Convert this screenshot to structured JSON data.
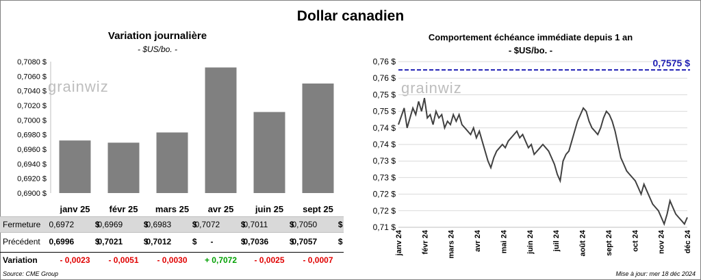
{
  "title": "Dollar canadien",
  "left_chart": {
    "title": "Variation  journalière",
    "subtitle": "- $US/bo. -",
    "logo": "grainwiz"
  },
  "right_chart": {
    "title": "Comportement échéance immédiate depuis 1 an",
    "subtitle": "- $US/bo. -",
    "reference_label": "0,7575 $",
    "logo": "grainwiz"
  },
  "table": {
    "rows": [
      {
        "label": "Fermeture",
        "values": [
          "0,6972",
          "0,6969",
          "0,6983",
          "0,7072",
          "0,7011",
          "0,7050"
        ]
      },
      {
        "label": "Précédent",
        "values": [
          "0,6996",
          "0,7021",
          "0,7012",
          "-",
          "0,7036",
          "0,7057"
        ]
      },
      {
        "label": "Variation",
        "values": [
          "- 0,0023",
          "- 0,0051",
          "- 0,0030",
          "+ 0,7072",
          "- 0,0025",
          "- 0,0007"
        ]
      }
    ],
    "unit": "$"
  },
  "footer": {
    "source": "Source: CME Group",
    "updated": "Mise à jour: mer 18 déc 2024"
  },
  "colors": {
    "bar": "#808080",
    "line": "#404040",
    "reference": "#1f1fb4",
    "negative": "#e00000",
    "positive": "#00a000"
  },
  "chart_data": [
    {
      "type": "bar",
      "categories": [
        "janv 25",
        "févr 25",
        "mars 25",
        "avr 25",
        "juin 25",
        "sept 25"
      ],
      "values": [
        0.6972,
        0.6969,
        0.6983,
        0.7072,
        0.7011,
        0.705
      ],
      "ylim": [
        0.69,
        0.708
      ],
      "yticks": [
        "0,6900 $",
        "0,6920 $",
        "0,6940 $",
        "0,6960 $",
        "0,6980 $",
        "0,7000 $",
        "0,7020 $",
        "0,7040 $",
        "0,7060 $",
        "0,7080 $"
      ],
      "grid": false
    },
    {
      "type": "line",
      "ylim": [
        0.71,
        0.76
      ],
      "yticks": [
        "0,71 $",
        "0,72 $",
        "0,72 $",
        "0,73 $",
        "0,73 $",
        "0,74 $",
        "0,74 $",
        "0,75 $",
        "0,75 $",
        "0,76 $",
        "0,76 $"
      ],
      "xticks": [
        "janv 24",
        "févr 24",
        "mars 24",
        "avr 24",
        "mai 24",
        "juin 24",
        "juil 24",
        "août 24",
        "sept 24",
        "oct 24",
        "nov 24",
        "déc 24"
      ],
      "reference_line": 0.7575,
      "grid": true,
      "series": [
        {
          "x": [
            0,
            2,
            3,
            5,
            6,
            7,
            8,
            9,
            10,
            11,
            12,
            13,
            14,
            15,
            16,
            17,
            18,
            19,
            20,
            21,
            22,
            23,
            25,
            26,
            27,
            28,
            29,
            30,
            31,
            32,
            33,
            34,
            35,
            36,
            37,
            38,
            39,
            40,
            41,
            42,
            43,
            44,
            45,
            46,
            47,
            48,
            49,
            50,
            51,
            52,
            53,
            54,
            55,
            56,
            57,
            58,
            59,
            60,
            61,
            62,
            63,
            64,
            65,
            66,
            67,
            68,
            69,
            70,
            71,
            72,
            73,
            74,
            75,
            76,
            77,
            78,
            79,
            80,
            81,
            82,
            83,
            84,
            85,
            86,
            87,
            88,
            89,
            90,
            91,
            92,
            93,
            94,
            95,
            96,
            97,
            98,
            99,
            100
          ],
          "y": [
            0.741,
            0.746,
            0.74,
            0.746,
            0.744,
            0.748,
            0.745,
            0.749,
            0.743,
            0.744,
            0.741,
            0.745,
            0.743,
            0.744,
            0.74,
            0.742,
            0.741,
            0.744,
            0.742,
            0.744,
            0.741,
            0.74,
            0.738,
            0.74,
            0.737,
            0.739,
            0.736,
            0.733,
            0.73,
            0.728,
            0.731,
            0.733,
            0.734,
            0.735,
            0.734,
            0.736,
            0.737,
            0.738,
            0.739,
            0.737,
            0.738,
            0.736,
            0.734,
            0.735,
            0.732,
            0.733,
            0.734,
            0.735,
            0.734,
            0.733,
            0.731,
            0.729,
            0.726,
            0.724,
            0.73,
            0.732,
            0.733,
            0.736,
            0.739,
            0.742,
            0.744,
            0.746,
            0.745,
            0.742,
            0.74,
            0.739,
            0.738,
            0.74,
            0.743,
            0.745,
            0.744,
            0.742,
            0.739,
            0.735,
            0.731,
            0.729,
            0.727,
            0.726,
            0.725,
            0.724,
            0.722,
            0.72,
            0.723,
            0.721,
            0.719,
            0.717,
            0.716,
            0.715,
            0.713,
            0.711,
            0.714,
            0.718,
            0.716,
            0.714,
            0.713,
            0.712,
            0.711,
            0.713
          ]
        }
      ]
    }
  ]
}
